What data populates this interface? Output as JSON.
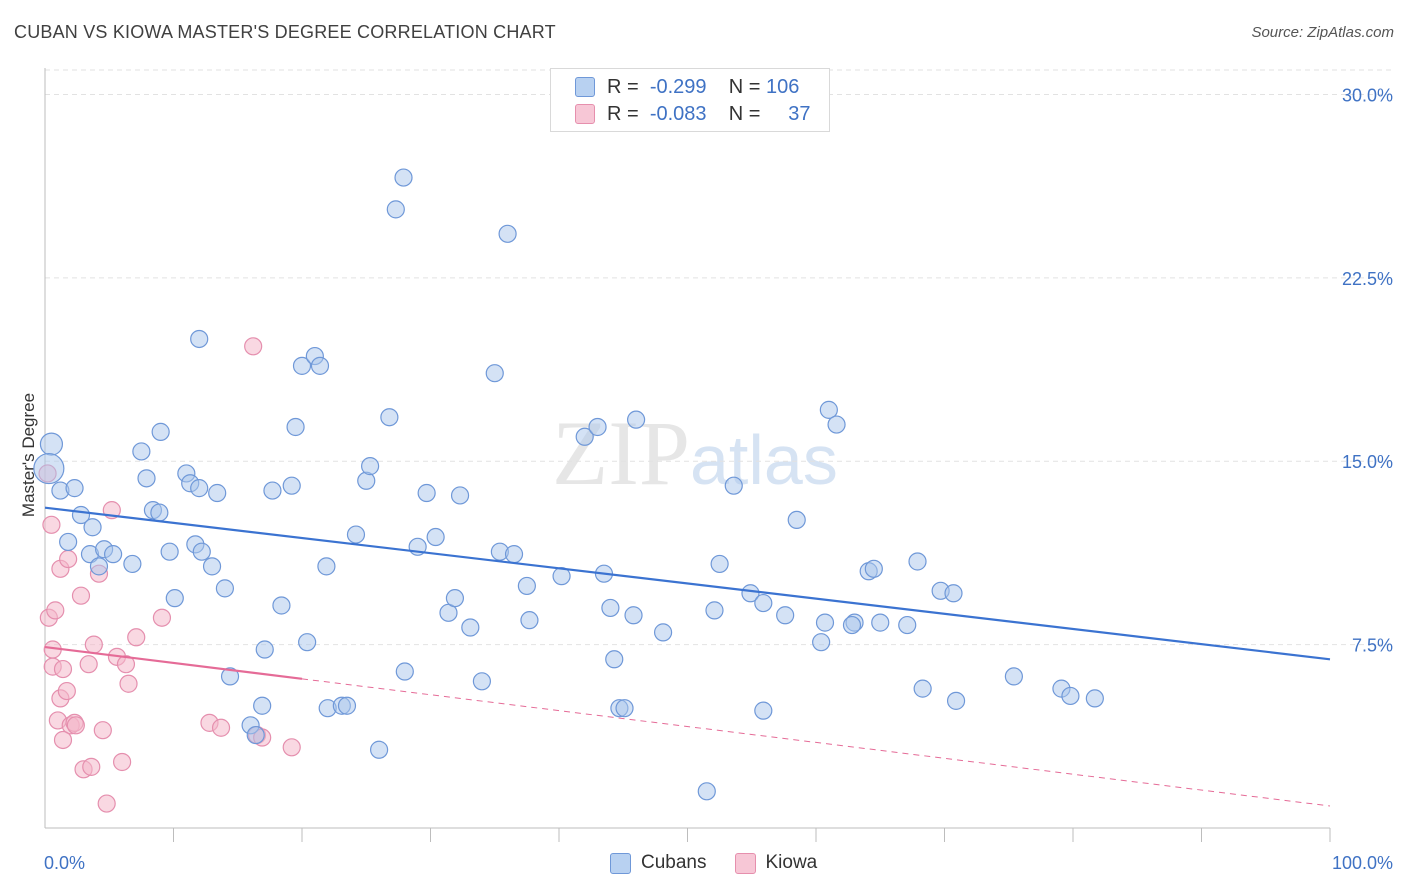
{
  "header": {
    "title": "CUBAN VS KIOWA MASTER'S DEGREE CORRELATION CHART",
    "source": "Source: ZipAtlas.com"
  },
  "legend": {
    "rows": [
      {
        "r_label": "R =",
        "r_value": "-0.299",
        "n_label": "N =",
        "n_value": "106"
      },
      {
        "r_label": "R =",
        "r_value": "-0.083",
        "n_label": "N =",
        "n_value": "37"
      }
    ]
  },
  "watermark": {
    "zip": "ZIP",
    "atlas": "atlas"
  },
  "colors": {
    "blue": "#3b73d1",
    "blue_fill": "#a9c6ec",
    "pink": "#e56b97",
    "pink_fill": "#f4b8cb"
  },
  "chart_data": {
    "type": "scatter",
    "title": "CUBAN VS KIOWA MASTER'S DEGREE CORRELATION CHART",
    "xlabel": "",
    "ylabel": "Master's Degree",
    "xlim": [
      0,
      100
    ],
    "ylim": [
      0,
      31
    ],
    "x_tick_labels": [
      "0.0%",
      "100.0%"
    ],
    "y_ticks": [
      7.5,
      15.0,
      22.5,
      30.0
    ],
    "y_tick_labels": [
      "7.5%",
      "15.0%",
      "22.5%",
      "30.0%"
    ],
    "series": [
      {
        "name": "Cubans",
        "trend": {
          "x": [
            0,
            100
          ],
          "y": [
            13.1,
            6.9
          ]
        },
        "points": [
          [
            0.5,
            15.7
          ],
          [
            0.3,
            14.7
          ],
          [
            1.2,
            13.8
          ],
          [
            2.3,
            13.9
          ],
          [
            2.8,
            12.8
          ],
          [
            3.7,
            12.3
          ],
          [
            1.8,
            11.7
          ],
          [
            3.5,
            11.2
          ],
          [
            4.6,
            11.4
          ],
          [
            5.3,
            11.2
          ],
          [
            4.2,
            10.7
          ],
          [
            6.8,
            10.8
          ],
          [
            7.5,
            15.4
          ],
          [
            7.9,
            14.3
          ],
          [
            9.0,
            16.2
          ],
          [
            8.4,
            13.0
          ],
          [
            8.9,
            12.9
          ],
          [
            9.7,
            11.3
          ],
          [
            10.1,
            9.4
          ],
          [
            11.0,
            14.5
          ],
          [
            11.3,
            14.1
          ],
          [
            12.0,
            13.9
          ],
          [
            11.7,
            11.6
          ],
          [
            13.4,
            13.7
          ],
          [
            12.2,
            11.3
          ],
          [
            13.0,
            10.7
          ],
          [
            14.0,
            9.8
          ],
          [
            12.0,
            20.0
          ],
          [
            14.4,
            6.2
          ],
          [
            16.0,
            4.2
          ],
          [
            16.4,
            3.8
          ],
          [
            16.9,
            5.0
          ],
          [
            17.1,
            7.3
          ],
          [
            17.7,
            13.8
          ],
          [
            18.4,
            9.1
          ],
          [
            19.2,
            14.0
          ],
          [
            19.5,
            16.4
          ],
          [
            20.0,
            18.9
          ],
          [
            21.0,
            19.3
          ],
          [
            21.4,
            18.9
          ],
          [
            20.4,
            7.6
          ],
          [
            21.9,
            10.7
          ],
          [
            22.0,
            4.9
          ],
          [
            23.1,
            5.0
          ],
          [
            23.5,
            5.0
          ],
          [
            24.2,
            12.0
          ],
          [
            25.0,
            14.2
          ],
          [
            25.3,
            14.8
          ],
          [
            26.0,
            3.2
          ],
          [
            26.8,
            16.8
          ],
          [
            27.3,
            25.3
          ],
          [
            27.9,
            26.6
          ],
          [
            28.0,
            6.4
          ],
          [
            29.0,
            11.5
          ],
          [
            29.7,
            13.7
          ],
          [
            30.4,
            11.9
          ],
          [
            31.4,
            8.8
          ],
          [
            31.9,
            9.4
          ],
          [
            32.3,
            13.6
          ],
          [
            33.1,
            8.2
          ],
          [
            34.0,
            6.0
          ],
          [
            35.0,
            18.6
          ],
          [
            35.4,
            11.3
          ],
          [
            36.0,
            24.3
          ],
          [
            36.5,
            11.2
          ],
          [
            37.5,
            9.9
          ],
          [
            37.7,
            8.5
          ],
          [
            40.2,
            10.3
          ],
          [
            42.0,
            16.0
          ],
          [
            43.0,
            16.4
          ],
          [
            43.5,
            10.4
          ],
          [
            44.0,
            9.0
          ],
          [
            44.3,
            6.9
          ],
          [
            44.7,
            4.9
          ],
          [
            45.1,
            4.9
          ],
          [
            45.8,
            8.7
          ],
          [
            46.0,
            16.7
          ],
          [
            48.1,
            8.0
          ],
          [
            51.5,
            1.5
          ],
          [
            52.1,
            8.9
          ],
          [
            52.5,
            10.8
          ],
          [
            53.6,
            14.0
          ],
          [
            54.9,
            9.6
          ],
          [
            55.9,
            9.2
          ],
          [
            55.9,
            4.8
          ],
          [
            57.6,
            8.7
          ],
          [
            58.5,
            12.6
          ],
          [
            60.4,
            7.6
          ],
          [
            60.7,
            8.4
          ],
          [
            61.0,
            17.1
          ],
          [
            61.6,
            16.5
          ],
          [
            63.0,
            8.4
          ],
          [
            64.1,
            10.5
          ],
          [
            64.5,
            10.6
          ],
          [
            65.0,
            8.4
          ],
          [
            67.1,
            8.3
          ],
          [
            67.9,
            10.9
          ],
          [
            68.3,
            5.7
          ],
          [
            69.7,
            9.7
          ],
          [
            70.7,
            9.6
          ],
          [
            70.9,
            5.2
          ],
          [
            75.4,
            6.2
          ],
          [
            79.1,
            5.7
          ],
          [
            79.8,
            5.4
          ],
          [
            81.7,
            5.3
          ],
          [
            62.8,
            8.3
          ]
        ]
      },
      {
        "name": "Kiowa",
        "trend": {
          "x": [
            0,
            20
          ],
          "y": [
            7.4,
            6.1
          ]
        },
        "trend_extended": {
          "x": [
            20,
            100
          ],
          "y": [
            6.1,
            0.9
          ]
        },
        "points": [
          [
            0.2,
            14.5
          ],
          [
            0.5,
            12.4
          ],
          [
            0.3,
            8.6
          ],
          [
            0.8,
            8.9
          ],
          [
            1.2,
            10.6
          ],
          [
            1.8,
            11.0
          ],
          [
            0.6,
            7.3
          ],
          [
            0.6,
            6.6
          ],
          [
            1.4,
            6.5
          ],
          [
            1.2,
            5.3
          ],
          [
            1.7,
            5.6
          ],
          [
            1.0,
            4.4
          ],
          [
            2.0,
            4.2
          ],
          [
            2.3,
            4.3
          ],
          [
            2.4,
            4.2
          ],
          [
            1.4,
            3.6
          ],
          [
            2.8,
            9.5
          ],
          [
            3.0,
            2.4
          ],
          [
            3.4,
            6.7
          ],
          [
            3.6,
            2.5
          ],
          [
            3.8,
            7.5
          ],
          [
            4.2,
            10.4
          ],
          [
            4.5,
            4.0
          ],
          [
            4.8,
            1.0
          ],
          [
            5.2,
            13.0
          ],
          [
            5.6,
            7.0
          ],
          [
            6.0,
            2.7
          ],
          [
            6.3,
            6.7
          ],
          [
            6.5,
            5.9
          ],
          [
            7.1,
            7.8
          ],
          [
            9.1,
            8.6
          ],
          [
            12.8,
            4.3
          ],
          [
            13.7,
            4.1
          ],
          [
            16.2,
            19.7
          ],
          [
            16.5,
            3.8
          ],
          [
            16.9,
            3.7
          ],
          [
            19.2,
            3.3
          ]
        ]
      }
    ]
  }
}
